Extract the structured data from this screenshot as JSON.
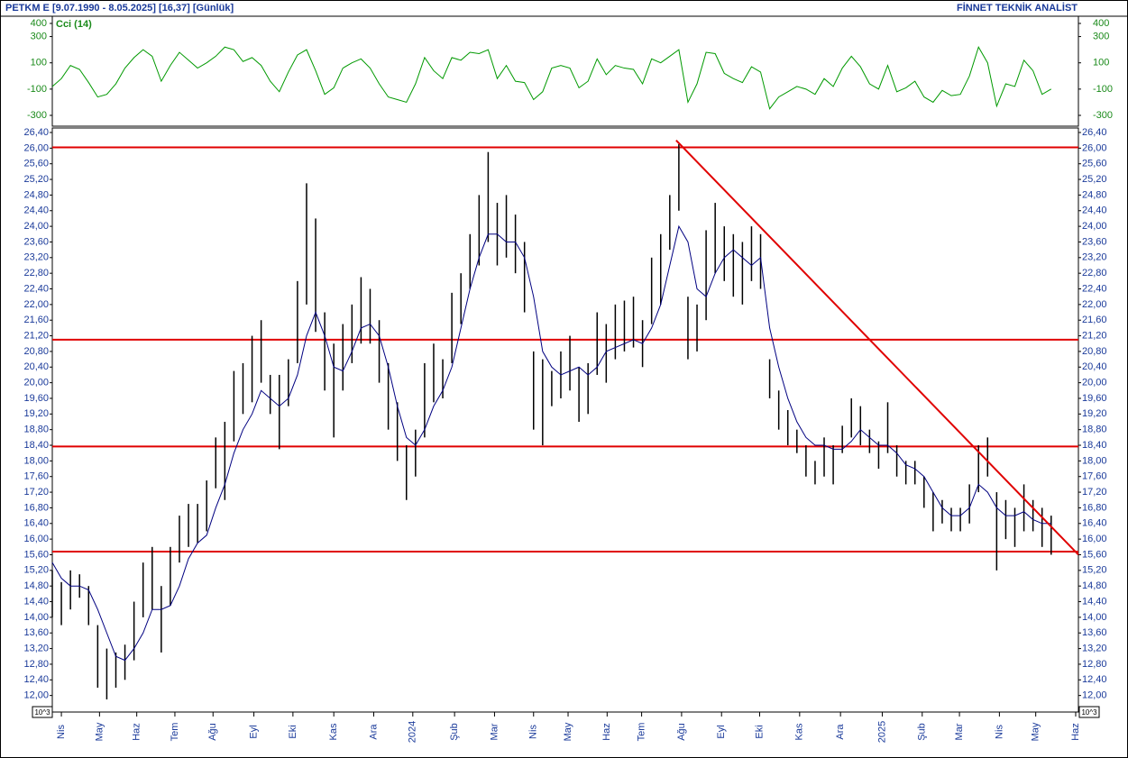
{
  "chart_data": {
    "type": "hlc",
    "title": "PETKM E  [9.07.1990 - 8.05.2025]  [16,37]  [Günlük]",
    "brand": "FİNNET TEKNİK ANALİST",
    "unit_label": "10^3",
    "xlim": [
      0,
      113
    ],
    "xticks": [
      {
        "value": 1.0,
        "label": "Nis"
      },
      {
        "value": 5.2,
        "label": "May"
      },
      {
        "value": 9.3,
        "label": "Haz"
      },
      {
        "value": 13.5,
        "label": "Tem"
      },
      {
        "value": 17.7,
        "label": "Ağu"
      },
      {
        "value": 22.2,
        "label": "Eyl"
      },
      {
        "value": 26.5,
        "label": "Eki"
      },
      {
        "value": 31.0,
        "label": "Kas"
      },
      {
        "value": 35.4,
        "label": "Ara"
      },
      {
        "value": 39.7,
        "label": "2024"
      },
      {
        "value": 44.3,
        "label": "Şub"
      },
      {
        "value": 48.7,
        "label": "Mar"
      },
      {
        "value": 53.0,
        "label": "Nis"
      },
      {
        "value": 56.8,
        "label": "May"
      },
      {
        "value": 61.1,
        "label": "Haz"
      },
      {
        "value": 64.9,
        "label": "Tem"
      },
      {
        "value": 69.3,
        "label": "Ağu"
      },
      {
        "value": 73.7,
        "label": "Eyl"
      },
      {
        "value": 77.9,
        "label": "Eki"
      },
      {
        "value": 82.3,
        "label": "Kas"
      },
      {
        "value": 86.8,
        "label": "Ara"
      },
      {
        "value": 91.4,
        "label": "2025"
      },
      {
        "value": 95.8,
        "label": "Şub"
      },
      {
        "value": 99.9,
        "label": "Mar"
      },
      {
        "value": 104.3,
        "label": "Nis"
      },
      {
        "value": 108.3,
        "label": "May"
      },
      {
        "value": 112.7,
        "label": "Haz"
      }
    ],
    "ylim": [
      11.6,
      26.4
    ],
    "yticks": [
      {
        "value": 12.0,
        "label": "12,00"
      },
      {
        "value": 12.4,
        "label": "12,40"
      },
      {
        "value": 12.8,
        "label": "12,80"
      },
      {
        "value": 13.2,
        "label": "13,20"
      },
      {
        "value": 13.6,
        "label": "13,60"
      },
      {
        "value": 14.0,
        "label": "14,00"
      },
      {
        "value": 14.4,
        "label": "14,40"
      },
      {
        "value": 14.8,
        "label": "14,80"
      },
      {
        "value": 15.2,
        "label": "15,20"
      },
      {
        "value": 15.6,
        "label": "15,60"
      },
      {
        "value": 16.0,
        "label": "16,00"
      },
      {
        "value": 16.4,
        "label": "16,40"
      },
      {
        "value": 16.8,
        "label": "16,80"
      },
      {
        "value": 17.2,
        "label": "17,20"
      },
      {
        "value": 17.6,
        "label": "17,60"
      },
      {
        "value": 18.0,
        "label": "18,00"
      },
      {
        "value": 18.4,
        "label": "18,40"
      },
      {
        "value": 18.8,
        "label": "18,80"
      },
      {
        "value": 19.2,
        "label": "19,20"
      },
      {
        "value": 19.6,
        "label": "19,60"
      },
      {
        "value": 20.0,
        "label": "20,00"
      },
      {
        "value": 20.4,
        "label": "20,40"
      },
      {
        "value": 20.8,
        "label": "20,80"
      },
      {
        "value": 21.2,
        "label": "21,20"
      },
      {
        "value": 21.6,
        "label": "21,60"
      },
      {
        "value": 22.0,
        "label": "22,00"
      },
      {
        "value": 22.4,
        "label": "22,40"
      },
      {
        "value": 22.8,
        "label": "22,80"
      },
      {
        "value": 23.2,
        "label": "23,20"
      },
      {
        "value": 23.6,
        "label": "23,60"
      },
      {
        "value": 24.0,
        "label": "24,00"
      },
      {
        "value": 24.4,
        "label": "24,40"
      },
      {
        "value": 24.8,
        "label": "24,80"
      },
      {
        "value": 25.2,
        "label": "25,20"
      },
      {
        "value": 25.6,
        "label": "25,60"
      },
      {
        "value": 26.0,
        "label": "26,00"
      },
      {
        "value": 26.4,
        "label": "26,40"
      }
    ],
    "bar_color": "#000000",
    "high": [
      15.2,
      14.9,
      15.2,
      15.1,
      14.8,
      13.8,
      13.2,
      13.1,
      13.3,
      14.4,
      15.4,
      15.8,
      14.8,
      15.8,
      16.6,
      16.9,
      16.9,
      17.5,
      18.6,
      19.0,
      20.3,
      20.5,
      21.2,
      21.6,
      20.2,
      20.2,
      20.6,
      22.6,
      25.1,
      24.2,
      21.8,
      21.0,
      21.5,
      22.0,
      22.7,
      22.4,
      21.6,
      20.5,
      19.5,
      18.4,
      18.8,
      20.5,
      21.0,
      20.6,
      22.3,
      22.8,
      23.8,
      24.8,
      25.9,
      24.6,
      24.8,
      24.3,
      23.6,
      20.8,
      20.6,
      20.3,
      20.8,
      21.2,
      20.4,
      20.5,
      21.8,
      21.5,
      22.0,
      22.1,
      22.2,
      21.6,
      23.2,
      23.8,
      24.8,
      26.1,
      22.2,
      22.0,
      23.9,
      24.6,
      24.0,
      23.8,
      23.6,
      24.0,
      23.8,
      20.6,
      19.8,
      19.3,
      18.8,
      18.4,
      18.0,
      18.6,
      18.4,
      18.9,
      19.6,
      19.4,
      18.8,
      18.5,
      19.5,
      18.4,
      18.0,
      18.0,
      17.6,
      17.2,
      17.0,
      16.8,
      16.8,
      17.4,
      18.4,
      18.6,
      17.2,
      17.0,
      16.8,
      17.4,
      17.0,
      16.8,
      16.6
    ],
    "low": [
      14.0,
      13.8,
      14.2,
      14.5,
      13.8,
      12.2,
      11.9,
      12.2,
      12.4,
      12.9,
      14.0,
      14.2,
      13.1,
      14.3,
      15.4,
      15.8,
      15.9,
      16.2,
      17.3,
      17.0,
      18.5,
      19.2,
      19.5,
      20.0,
      19.2,
      18.3,
      19.4,
      20.5,
      22.0,
      21.3,
      19.8,
      18.6,
      19.8,
      20.5,
      21.0,
      21.0,
      20.0,
      18.8,
      18.0,
      17.0,
      17.6,
      18.6,
      19.5,
      19.6,
      20.5,
      21.5,
      22.4,
      23.0,
      23.6,
      23.0,
      23.2,
      22.8,
      21.8,
      18.8,
      18.4,
      19.4,
      19.6,
      19.8,
      19.0,
      19.2,
      20.2,
      20.0,
      20.6,
      20.8,
      20.9,
      20.4,
      21.5,
      22.0,
      23.4,
      24.4,
      20.6,
      20.8,
      21.6,
      22.8,
      22.6,
      22.2,
      22.0,
      22.6,
      22.4,
      19.6,
      18.8,
      18.4,
      18.2,
      17.6,
      17.4,
      17.6,
      17.4,
      18.2,
      18.6,
      18.4,
      18.2,
      17.8,
      18.2,
      17.6,
      17.4,
      17.4,
      16.8,
      16.2,
      16.4,
      16.2,
      16.2,
      16.4,
      17.2,
      17.6,
      15.2,
      16.0,
      15.8,
      16.2,
      16.2,
      15.8,
      15.6
    ],
    "ma_color": "#000080",
    "ma": [
      15.4,
      15.0,
      14.8,
      14.8,
      14.7,
      14.2,
      13.6,
      13.0,
      12.9,
      13.2,
      13.6,
      14.2,
      14.2,
      14.3,
      14.8,
      15.5,
      15.9,
      16.1,
      16.8,
      17.4,
      18.2,
      18.8,
      19.2,
      19.8,
      19.6,
      19.4,
      19.6,
      20.2,
      21.2,
      21.8,
      21.2,
      20.4,
      20.3,
      20.8,
      21.4,
      21.5,
      21.2,
      20.4,
      19.4,
      18.6,
      18.4,
      18.8,
      19.4,
      19.8,
      20.4,
      21.4,
      22.4,
      23.2,
      23.8,
      23.8,
      23.6,
      23.6,
      23.2,
      22.2,
      20.8,
      20.4,
      20.2,
      20.3,
      20.4,
      20.2,
      20.4,
      20.8,
      20.9,
      21.0,
      21.1,
      21.0,
      21.4,
      22.0,
      23.0,
      24.0,
      23.6,
      22.4,
      22.2,
      22.8,
      23.2,
      23.4,
      23.2,
      23.0,
      23.2,
      21.4,
      20.4,
      19.6,
      19.0,
      18.6,
      18.4,
      18.4,
      18.3,
      18.3,
      18.5,
      18.8,
      18.6,
      18.4,
      18.4,
      18.2,
      17.9,
      17.8,
      17.6,
      17.2,
      16.8,
      16.6,
      16.6,
      16.8,
      17.4,
      17.2,
      16.8,
      16.6,
      16.6,
      16.7,
      16.5,
      16.4,
      16.4
    ],
    "level_color": "#e00000",
    "levels": [
      26.02,
      21.1,
      18.37,
      15.68
    ],
    "trendline": {
      "x": [
        68.7,
        113
      ],
      "y": [
        26.2,
        15.6
      ]
    },
    "cci": {
      "name": "Cci (14)",
      "color": "#009900",
      "ylim": [
        -370,
        470
      ],
      "yticks": [
        400,
        300,
        100,
        -100,
        -300
      ],
      "values": [
        -80,
        -20,
        80,
        50,
        -50,
        -160,
        -140,
        -60,
        60,
        140,
        200,
        150,
        -40,
        80,
        180,
        120,
        60,
        100,
        150,
        220,
        200,
        110,
        140,
        80,
        -40,
        -120,
        30,
        160,
        200,
        40,
        -140,
        -90,
        60,
        100,
        130,
        60,
        -60,
        -160,
        -180,
        -200,
        -60,
        140,
        40,
        -20,
        140,
        120,
        180,
        170,
        200,
        -20,
        80,
        -40,
        -50,
        -180,
        -120,
        60,
        80,
        60,
        -90,
        -40,
        130,
        10,
        80,
        60,
        50,
        -60,
        130,
        100,
        150,
        200,
        -200,
        -60,
        180,
        170,
        20,
        -20,
        -50,
        70,
        30,
        -250,
        -160,
        -120,
        -80,
        -100,
        -140,
        -20,
        -80,
        60,
        150,
        70,
        -60,
        -100,
        80,
        -120,
        -90,
        -40,
        -160,
        -200,
        -110,
        -150,
        -140,
        0,
        220,
        100,
        -230,
        -60,
        -80,
        120,
        40,
        -140,
        -100
      ]
    }
  }
}
